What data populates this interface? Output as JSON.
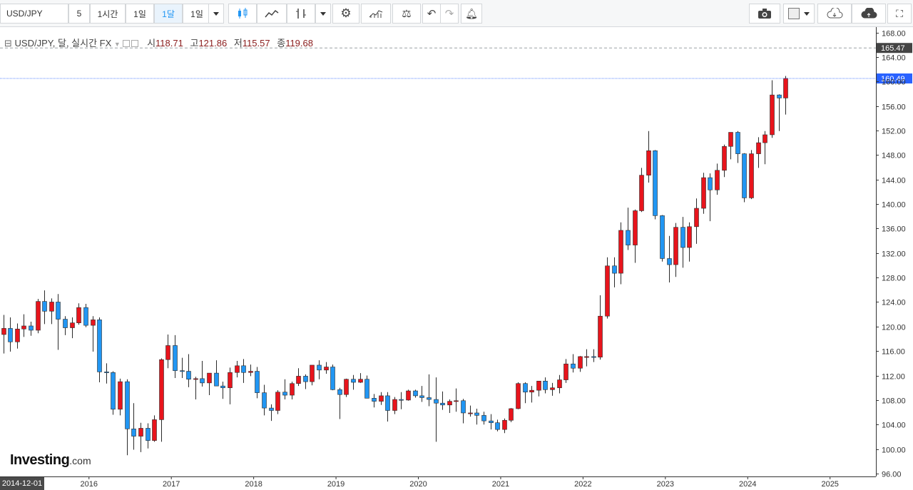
{
  "toolbar": {
    "symbol": "USD/JPY",
    "intervals": [
      "5",
      "1시간",
      "1일",
      "1달",
      "1일"
    ],
    "active_interval": "1달"
  },
  "legend": {
    "title": "USD/JPY, 달, 실시간 FX",
    "open_label": "시",
    "open": "118.71",
    "high_label": "고",
    "high": "121.86",
    "low_label": "저",
    "low": "115.57",
    "close_label": "종",
    "close": "119.68"
  },
  "logo": {
    "brand": "Investing",
    "suffix": ".com"
  },
  "crosshair_date": "2014-12-01",
  "colors": {
    "up": "#e8141c",
    "down": "#2196f3",
    "last_price_line": "#2962ff",
    "dashed_line": "#9aa0a6"
  },
  "chart_data": {
    "type": "candlestick",
    "title": "USD/JPY",
    "interval": "monthly",
    "ylim": [
      96,
      168
    ],
    "y_ticks": [
      168,
      164,
      160,
      156,
      152,
      148,
      144,
      140,
      136,
      132,
      128,
      124,
      120,
      116,
      112,
      108,
      104,
      100,
      96
    ],
    "x_ticks": [
      "2016",
      "2017",
      "2018",
      "2019",
      "2020",
      "2021",
      "2022",
      "2023",
      "2024",
      "2025"
    ],
    "x_tick_dates": [
      2016,
      2017,
      2018,
      2019,
      2020,
      2021,
      2022,
      2023,
      2024,
      2025
    ],
    "x_start_label": "2014-12-01",
    "last_price": 160.49,
    "dashed_level": 165.47,
    "series": [
      {
        "date": "2014-12",
        "o": 118.7,
        "h": 121.9,
        "l": 115.6,
        "c": 119.7
      },
      {
        "date": "2015-01",
        "o": 119.7,
        "h": 121.5,
        "l": 115.9,
        "c": 117.5
      },
      {
        "date": "2015-02",
        "o": 117.5,
        "h": 120.5,
        "l": 116.4,
        "c": 119.6
      },
      {
        "date": "2015-03",
        "o": 119.6,
        "h": 122.0,
        "l": 118.3,
        "c": 120.1
      },
      {
        "date": "2015-04",
        "o": 120.1,
        "h": 120.8,
        "l": 118.5,
        "c": 119.4
      },
      {
        "date": "2015-05",
        "o": 119.4,
        "h": 124.5,
        "l": 118.9,
        "c": 124.1
      },
      {
        "date": "2015-06",
        "o": 124.1,
        "h": 125.9,
        "l": 120.4,
        "c": 122.5
      },
      {
        "date": "2015-07",
        "o": 122.5,
        "h": 124.6,
        "l": 120.4,
        "c": 124.0
      },
      {
        "date": "2015-08",
        "o": 124.0,
        "h": 125.3,
        "l": 116.2,
        "c": 121.2
      },
      {
        "date": "2015-09",
        "o": 121.2,
        "h": 121.7,
        "l": 118.6,
        "c": 119.8
      },
      {
        "date": "2015-10",
        "o": 119.8,
        "h": 121.5,
        "l": 118.1,
        "c": 120.6
      },
      {
        "date": "2015-11",
        "o": 120.6,
        "h": 123.8,
        "l": 120.3,
        "c": 123.1
      },
      {
        "date": "2015-12",
        "o": 123.1,
        "h": 123.7,
        "l": 119.9,
        "c": 120.2
      },
      {
        "date": "2016-01",
        "o": 120.2,
        "h": 121.7,
        "l": 115.9,
        "c": 121.1
      },
      {
        "date": "2016-02",
        "o": 121.1,
        "h": 121.5,
        "l": 110.9,
        "c": 112.6
      },
      {
        "date": "2016-03",
        "o": 112.6,
        "h": 114.0,
        "l": 110.7,
        "c": 112.5
      },
      {
        "date": "2016-04",
        "o": 112.5,
        "h": 112.7,
        "l": 105.6,
        "c": 106.5
      },
      {
        "date": "2016-05",
        "o": 106.5,
        "h": 111.5,
        "l": 105.5,
        "c": 111.0
      },
      {
        "date": "2016-06",
        "o": 111.0,
        "h": 111.4,
        "l": 99.0,
        "c": 103.3
      },
      {
        "date": "2016-07",
        "o": 103.3,
        "h": 107.5,
        "l": 99.9,
        "c": 102.1
      },
      {
        "date": "2016-08",
        "o": 102.1,
        "h": 104.3,
        "l": 99.5,
        "c": 103.4
      },
      {
        "date": "2016-09",
        "o": 103.4,
        "h": 104.2,
        "l": 100.1,
        "c": 101.4
      },
      {
        "date": "2016-10",
        "o": 101.4,
        "h": 105.5,
        "l": 101.2,
        "c": 104.8
      },
      {
        "date": "2016-11",
        "o": 104.8,
        "h": 114.8,
        "l": 101.2,
        "c": 114.6
      },
      {
        "date": "2016-12",
        "o": 114.6,
        "h": 118.7,
        "l": 113.2,
        "c": 116.9
      },
      {
        "date": "2017-01",
        "o": 116.9,
        "h": 118.6,
        "l": 111.6,
        "c": 112.8
      },
      {
        "date": "2017-02",
        "o": 112.8,
        "h": 114.9,
        "l": 111.6,
        "c": 112.7
      },
      {
        "date": "2017-03",
        "o": 112.7,
        "h": 115.5,
        "l": 110.1,
        "c": 111.4
      },
      {
        "date": "2017-04",
        "o": 111.4,
        "h": 111.8,
        "l": 108.1,
        "c": 111.5
      },
      {
        "date": "2017-05",
        "o": 111.5,
        "h": 114.4,
        "l": 110.2,
        "c": 110.8
      },
      {
        "date": "2017-06",
        "o": 110.8,
        "h": 112.4,
        "l": 108.8,
        "c": 112.4
      },
      {
        "date": "2017-07",
        "o": 112.4,
        "h": 114.5,
        "l": 110.6,
        "c": 110.3
      },
      {
        "date": "2017-08",
        "o": 110.3,
        "h": 111.0,
        "l": 108.2,
        "c": 110.0
      },
      {
        "date": "2017-09",
        "o": 110.0,
        "h": 113.3,
        "l": 107.3,
        "c": 112.5
      },
      {
        "date": "2017-10",
        "o": 112.5,
        "h": 114.4,
        "l": 111.7,
        "c": 113.6
      },
      {
        "date": "2017-11",
        "o": 113.6,
        "h": 114.7,
        "l": 110.8,
        "c": 112.5
      },
      {
        "date": "2017-12",
        "o": 112.5,
        "h": 113.8,
        "l": 111.9,
        "c": 112.7
      },
      {
        "date": "2018-01",
        "o": 112.7,
        "h": 113.4,
        "l": 108.3,
        "c": 109.2
      },
      {
        "date": "2018-02",
        "o": 109.2,
        "h": 110.5,
        "l": 105.5,
        "c": 106.7
      },
      {
        "date": "2018-03",
        "o": 106.7,
        "h": 107.3,
        "l": 104.6,
        "c": 106.3
      },
      {
        "date": "2018-04",
        "o": 106.3,
        "h": 109.6,
        "l": 105.7,
        "c": 109.3
      },
      {
        "date": "2018-05",
        "o": 109.3,
        "h": 111.4,
        "l": 108.1,
        "c": 108.8
      },
      {
        "date": "2018-06",
        "o": 108.8,
        "h": 111.0,
        "l": 108.1,
        "c": 110.7
      },
      {
        "date": "2018-07",
        "o": 110.7,
        "h": 113.2,
        "l": 110.3,
        "c": 111.9
      },
      {
        "date": "2018-08",
        "o": 111.9,
        "h": 112.2,
        "l": 109.8,
        "c": 111.0
      },
      {
        "date": "2018-09",
        "o": 111.0,
        "h": 113.7,
        "l": 110.4,
        "c": 113.7
      },
      {
        "date": "2018-10",
        "o": 113.7,
        "h": 114.5,
        "l": 111.4,
        "c": 112.9
      },
      {
        "date": "2018-11",
        "o": 112.9,
        "h": 114.2,
        "l": 112.3,
        "c": 113.4
      },
      {
        "date": "2018-12",
        "o": 113.4,
        "h": 113.8,
        "l": 109.6,
        "c": 109.7
      },
      {
        "date": "2019-01",
        "o": 109.7,
        "h": 110.0,
        "l": 104.9,
        "c": 108.9
      },
      {
        "date": "2019-02",
        "o": 108.9,
        "h": 111.5,
        "l": 108.5,
        "c": 111.4
      },
      {
        "date": "2019-03",
        "o": 111.4,
        "h": 112.1,
        "l": 109.7,
        "c": 110.9
      },
      {
        "date": "2019-04",
        "o": 110.9,
        "h": 112.4,
        "l": 110.8,
        "c": 111.4
      },
      {
        "date": "2019-05",
        "o": 111.4,
        "h": 112.0,
        "l": 108.3,
        "c": 108.3
      },
      {
        "date": "2019-06",
        "o": 108.3,
        "h": 109.0,
        "l": 106.8,
        "c": 107.8
      },
      {
        "date": "2019-07",
        "o": 107.8,
        "h": 109.3,
        "l": 107.2,
        "c": 108.7
      },
      {
        "date": "2019-08",
        "o": 108.7,
        "h": 109.3,
        "l": 104.5,
        "c": 106.3
      },
      {
        "date": "2019-09",
        "o": 106.3,
        "h": 108.5,
        "l": 105.7,
        "c": 108.1
      },
      {
        "date": "2019-10",
        "o": 108.1,
        "h": 109.3,
        "l": 106.5,
        "c": 108.0
      },
      {
        "date": "2019-11",
        "o": 108.0,
        "h": 109.7,
        "l": 107.9,
        "c": 109.5
      },
      {
        "date": "2019-12",
        "o": 109.5,
        "h": 109.7,
        "l": 108.4,
        "c": 108.7
      },
      {
        "date": "2020-01",
        "o": 108.7,
        "h": 110.3,
        "l": 107.7,
        "c": 108.4
      },
      {
        "date": "2020-02",
        "o": 108.4,
        "h": 112.2,
        "l": 107.0,
        "c": 108.1
      },
      {
        "date": "2020-03",
        "o": 108.1,
        "h": 111.7,
        "l": 101.2,
        "c": 107.5
      },
      {
        "date": "2020-04",
        "o": 107.5,
        "h": 109.4,
        "l": 106.4,
        "c": 107.2
      },
      {
        "date": "2020-05",
        "o": 107.2,
        "h": 108.1,
        "l": 105.9,
        "c": 107.8
      },
      {
        "date": "2020-06",
        "o": 107.8,
        "h": 109.9,
        "l": 106.1,
        "c": 107.9
      },
      {
        "date": "2020-07",
        "o": 107.9,
        "h": 108.2,
        "l": 104.2,
        "c": 105.9
      },
      {
        "date": "2020-08",
        "o": 105.9,
        "h": 107.1,
        "l": 105.3,
        "c": 105.9
      },
      {
        "date": "2020-09",
        "o": 105.9,
        "h": 106.6,
        "l": 104.0,
        "c": 105.5
      },
      {
        "date": "2020-10",
        "o": 105.5,
        "h": 106.1,
        "l": 104.0,
        "c": 104.6
      },
      {
        "date": "2020-11",
        "o": 104.6,
        "h": 105.7,
        "l": 103.2,
        "c": 104.3
      },
      {
        "date": "2020-12",
        "o": 104.3,
        "h": 104.8,
        "l": 102.9,
        "c": 103.2
      },
      {
        "date": "2021-01",
        "o": 103.2,
        "h": 105.0,
        "l": 102.6,
        "c": 104.7
      },
      {
        "date": "2021-02",
        "o": 104.7,
        "h": 106.7,
        "l": 104.4,
        "c": 106.6
      },
      {
        "date": "2021-03",
        "o": 106.6,
        "h": 110.9,
        "l": 106.5,
        "c": 110.7
      },
      {
        "date": "2021-04",
        "o": 110.7,
        "h": 110.9,
        "l": 107.5,
        "c": 109.3
      },
      {
        "date": "2021-05",
        "o": 109.3,
        "h": 110.3,
        "l": 107.6,
        "c": 109.6
      },
      {
        "date": "2021-06",
        "o": 109.6,
        "h": 111.1,
        "l": 108.6,
        "c": 111.1
      },
      {
        "date": "2021-07",
        "o": 111.1,
        "h": 111.7,
        "l": 109.1,
        "c": 109.7
      },
      {
        "date": "2021-08",
        "o": 109.7,
        "h": 110.8,
        "l": 108.7,
        "c": 110.0
      },
      {
        "date": "2021-09",
        "o": 110.0,
        "h": 112.1,
        "l": 109.1,
        "c": 111.3
      },
      {
        "date": "2021-10",
        "o": 111.3,
        "h": 114.7,
        "l": 110.8,
        "c": 113.9
      },
      {
        "date": "2021-11",
        "o": 113.9,
        "h": 115.5,
        "l": 112.5,
        "c": 113.2
      },
      {
        "date": "2021-12",
        "o": 113.2,
        "h": 115.2,
        "l": 112.6,
        "c": 115.1
      },
      {
        "date": "2022-01",
        "o": 115.1,
        "h": 116.3,
        "l": 113.5,
        "c": 115.1
      },
      {
        "date": "2022-02",
        "o": 115.1,
        "h": 116.3,
        "l": 114.2,
        "c": 115.0
      },
      {
        "date": "2022-03",
        "o": 115.0,
        "h": 125.1,
        "l": 114.6,
        "c": 121.7
      },
      {
        "date": "2022-04",
        "o": 121.7,
        "h": 131.3,
        "l": 121.3,
        "c": 129.9
      },
      {
        "date": "2022-05",
        "o": 129.9,
        "h": 131.3,
        "l": 126.4,
        "c": 128.7
      },
      {
        "date": "2022-06",
        "o": 128.7,
        "h": 137.0,
        "l": 126.9,
        "c": 135.7
      },
      {
        "date": "2022-07",
        "o": 135.7,
        "h": 139.4,
        "l": 132.5,
        "c": 133.3
      },
      {
        "date": "2022-08",
        "o": 133.3,
        "h": 139.1,
        "l": 130.4,
        "c": 138.9
      },
      {
        "date": "2022-09",
        "o": 138.9,
        "h": 145.9,
        "l": 138.7,
        "c": 144.7
      },
      {
        "date": "2022-10",
        "o": 144.7,
        "h": 151.9,
        "l": 143.5,
        "c": 148.7
      },
      {
        "date": "2022-11",
        "o": 148.7,
        "h": 148.8,
        "l": 137.5,
        "c": 138.1
      },
      {
        "date": "2022-12",
        "o": 138.1,
        "h": 138.2,
        "l": 130.6,
        "c": 131.1
      },
      {
        "date": "2023-01",
        "o": 131.1,
        "h": 134.8,
        "l": 127.2,
        "c": 130.1
      },
      {
        "date": "2023-02",
        "o": 130.1,
        "h": 136.9,
        "l": 128.1,
        "c": 136.2
      },
      {
        "date": "2023-03",
        "o": 136.2,
        "h": 137.9,
        "l": 129.6,
        "c": 132.9
      },
      {
        "date": "2023-04",
        "o": 132.9,
        "h": 137.0,
        "l": 130.6,
        "c": 136.3
      },
      {
        "date": "2023-05",
        "o": 136.3,
        "h": 140.9,
        "l": 133.5,
        "c": 139.3
      },
      {
        "date": "2023-06",
        "o": 139.3,
        "h": 145.1,
        "l": 138.4,
        "c": 144.3
      },
      {
        "date": "2023-07",
        "o": 144.3,
        "h": 145.0,
        "l": 137.2,
        "c": 142.3
      },
      {
        "date": "2023-08",
        "o": 142.3,
        "h": 146.6,
        "l": 141.5,
        "c": 145.5
      },
      {
        "date": "2023-09",
        "o": 145.5,
        "h": 149.7,
        "l": 144.4,
        "c": 149.4
      },
      {
        "date": "2023-10",
        "o": 149.4,
        "h": 151.7,
        "l": 147.3,
        "c": 151.7
      },
      {
        "date": "2023-11",
        "o": 151.7,
        "h": 151.9,
        "l": 146.7,
        "c": 148.2
      },
      {
        "date": "2023-12",
        "o": 148.2,
        "h": 148.3,
        "l": 140.3,
        "c": 141.0
      },
      {
        "date": "2024-01",
        "o": 141.0,
        "h": 148.8,
        "l": 140.8,
        "c": 148.2
      },
      {
        "date": "2024-02",
        "o": 148.2,
        "h": 150.9,
        "l": 145.9,
        "c": 150.0
      },
      {
        "date": "2024-03",
        "o": 150.0,
        "h": 151.9,
        "l": 146.5,
        "c": 151.3
      },
      {
        "date": "2024-04",
        "o": 151.3,
        "h": 160.2,
        "l": 150.8,
        "c": 157.8
      },
      {
        "date": "2024-05",
        "o": 157.8,
        "h": 157.9,
        "l": 151.9,
        "c": 157.3
      },
      {
        "date": "2024-06",
        "o": 157.3,
        "h": 160.9,
        "l": 154.6,
        "c": 160.5
      }
    ]
  }
}
